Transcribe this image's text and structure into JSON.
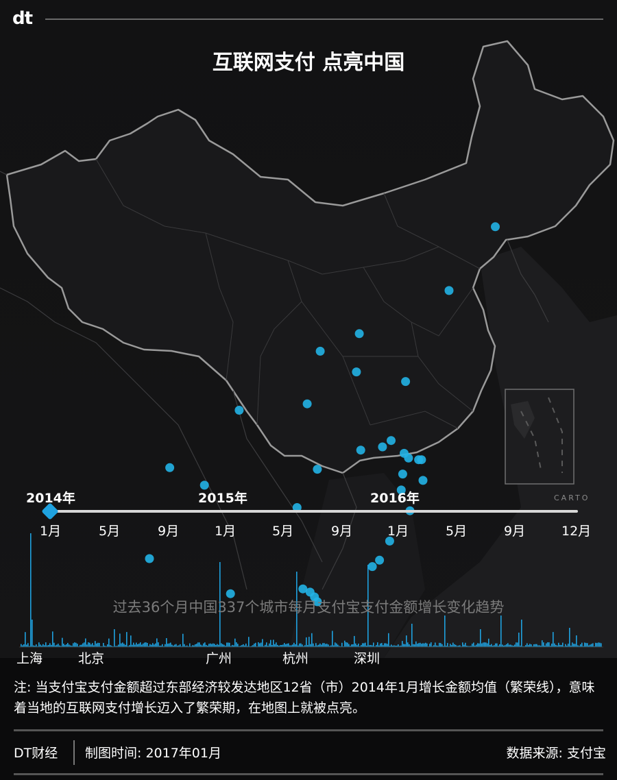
{
  "brand": {
    "logo": "dt"
  },
  "title": "互联网支付 点亮中国",
  "colors": {
    "dot": "#22b3e6",
    "bar": "#1fa2e0",
    "background": "#0b0b0c"
  },
  "map": {
    "attribution": "CARTO",
    "cities_lit": [
      {
        "lon": 126.6,
        "lat": 45.8
      },
      {
        "lon": 123.4,
        "lat": 41.8
      },
      {
        "lon": 117.2,
        "lat": 39.1
      },
      {
        "lon": 114.5,
        "lat": 38.0
      },
      {
        "lon": 117.0,
        "lat": 36.7
      },
      {
        "lon": 120.4,
        "lat": 36.1
      },
      {
        "lon": 113.6,
        "lat": 34.7
      },
      {
        "lon": 108.9,
        "lat": 34.3
      },
      {
        "lon": 119.4,
        "lat": 32.4
      },
      {
        "lon": 120.3,
        "lat": 31.6
      },
      {
        "lon": 121.3,
        "lat": 31.2
      },
      {
        "lon": 118.8,
        "lat": 32.0
      },
      {
        "lon": 117.3,
        "lat": 31.8
      },
      {
        "lon": 120.6,
        "lat": 31.3
      },
      {
        "lon": 121.5,
        "lat": 31.2
      },
      {
        "lon": 120.2,
        "lat": 30.3
      },
      {
        "lon": 121.6,
        "lat": 29.9
      },
      {
        "lon": 120.1,
        "lat": 29.3
      },
      {
        "lon": 120.7,
        "lat": 28.0
      },
      {
        "lon": 114.3,
        "lat": 30.6
      },
      {
        "lon": 104.1,
        "lat": 30.7
      },
      {
        "lon": 106.5,
        "lat": 29.6
      },
      {
        "lon": 112.9,
        "lat": 28.2
      },
      {
        "lon": 119.3,
        "lat": 26.1
      },
      {
        "lon": 118.6,
        "lat": 24.9
      },
      {
        "lon": 118.1,
        "lat": 24.5
      },
      {
        "lon": 102.7,
        "lat": 25.0
      },
      {
        "lon": 108.3,
        "lat": 22.8
      },
      {
        "lon": 113.3,
        "lat": 23.1
      },
      {
        "lon": 113.8,
        "lat": 22.9
      },
      {
        "lon": 114.1,
        "lat": 22.6
      },
      {
        "lon": 114.3,
        "lat": 22.3
      }
    ]
  },
  "timeline": {
    "years": [
      "2014年",
      "2015年",
      "2016年"
    ],
    "months": [
      "1月",
      "5月",
      "9月",
      "1月",
      "5月",
      "9月",
      "1月",
      "5月",
      "9月",
      "12月"
    ],
    "current_index": 0
  },
  "trend": {
    "subtitle": "过去36个月中国337个城市每月支付宝支付金额增长变化趋势",
    "city_labels": [
      "上海",
      "北京",
      "广州",
      "杭州",
      "深圳"
    ]
  },
  "note": "注: 当支付宝支付金额超过东部经济较发达地区12省（市）2014年1月增长金额均值（繁荣线），意味着当地的互联网支付增长迈入了繁荣期，在地图上就被点亮。",
  "footer": {
    "brand": "DT财经",
    "date": "制图时间: 2017年01月",
    "source": "数据来源: 支付宝"
  }
}
